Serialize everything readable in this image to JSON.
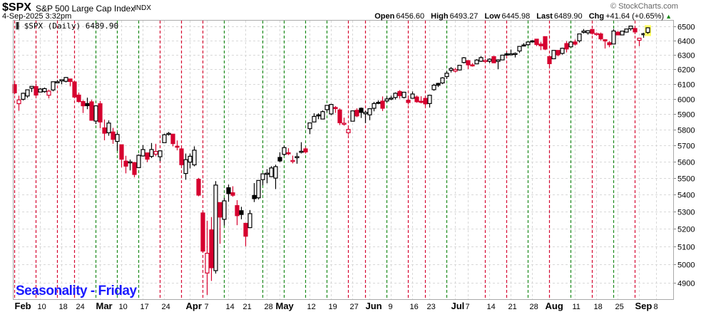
{
  "header": {
    "symbol": "$SPX",
    "name": "S&P 500 Large Cap Index",
    "exchange": "INDX",
    "timestamp": "4-Sep-2025 3:32pm",
    "brand": "© StockCharts.com"
  },
  "quote": {
    "open_label": "Open",
    "open": "6456.60",
    "high_label": "High",
    "high": "6493.27",
    "low_label": "Low",
    "low": "6445.98",
    "last_label": "Last",
    "last": "6489.90",
    "chg_label": "Chg",
    "chg": "+41.64 (+0.65%)"
  },
  "legend": {
    "text": "$SPX (Daily) 6489.90"
  },
  "annotation": "Seasonality - Friday",
  "colors": {
    "up": "#000000",
    "down": "#d6002f",
    "friday_up": "#1a8a1a",
    "friday_down": "#d6002f",
    "highlight": "#ffff66",
    "annotation": "#1a1aff"
  },
  "chart_data": {
    "type": "candlestick",
    "title": "$SPX (Daily)",
    "scale": "log",
    "ylim": [
      4820,
      6530
    ],
    "yticks": [
      4900,
      5000,
      5100,
      5200,
      5300,
      5400,
      5500,
      5600,
      5700,
      5800,
      5900,
      6000,
      6100,
      6200,
      6300,
      6400,
      6500
    ],
    "xticks": [
      {
        "label": "Feb",
        "i": 1,
        "b": true
      },
      {
        "label": "10",
        "i": 6
      },
      {
        "label": "18",
        "i": 11
      },
      {
        "label": "24",
        "i": 15
      },
      {
        "label": "Mar",
        "i": 20,
        "b": true
      },
      {
        "label": "10",
        "i": 25
      },
      {
        "label": "17",
        "i": 30
      },
      {
        "label": "24",
        "i": 35
      },
      {
        "label": "Apr",
        "i": 41,
        "b": true
      },
      {
        "label": "7",
        "i": 45
      },
      {
        "label": "14",
        "i": 50
      },
      {
        "label": "21",
        "i": 54
      },
      {
        "label": "28",
        "i": 59
      },
      {
        "label": "May",
        "i": 62,
        "b": true
      },
      {
        "label": "12",
        "i": 69
      },
      {
        "label": "19",
        "i": 74
      },
      {
        "label": "27",
        "i": 79
      },
      {
        "label": "Jun",
        "i": 83,
        "b": true
      },
      {
        "label": "9",
        "i": 88
      },
      {
        "label": "16",
        "i": 93
      },
      {
        "label": "23",
        "i": 97
      },
      {
        "label": "Jul",
        "i": 103,
        "b": true
      },
      {
        "label": "7",
        "i": 106
      },
      {
        "label": "14",
        "i": 111
      },
      {
        "label": "21",
        "i": 116
      },
      {
        "label": "28",
        "i": 121
      },
      {
        "label": "Aug",
        "i": 125,
        "b": true
      },
      {
        "label": "11",
        "i": 131
      },
      {
        "label": "18",
        "i": 136
      },
      {
        "label": "25",
        "i": 141
      },
      {
        "label": "Sep",
        "i": 146,
        "b": true
      },
      {
        "label": "8",
        "i": 150
      }
    ],
    "fridays": [
      {
        "i": 0,
        "up": false
      },
      {
        "i": 5,
        "up": false
      },
      {
        "i": 10,
        "up": false
      },
      {
        "i": 14,
        "up": false
      },
      {
        "i": 19,
        "up": true
      },
      {
        "i": 24,
        "up": true
      },
      {
        "i": 29,
        "up": true
      },
      {
        "i": 34,
        "up": false
      },
      {
        "i": 39,
        "up": false
      },
      {
        "i": 44,
        "up": false
      },
      {
        "i": 49,
        "up": true
      },
      {
        "i": 58,
        "up": true
      },
      {
        "i": 63,
        "up": true
      },
      {
        "i": 68,
        "up": true
      },
      {
        "i": 73,
        "up": true
      },
      {
        "i": 78,
        "up": false
      },
      {
        "i": 82,
        "up": false
      },
      {
        "i": 87,
        "up": true
      },
      {
        "i": 92,
        "up": false
      },
      {
        "i": 96,
        "up": false
      },
      {
        "i": 101,
        "up": true
      },
      {
        "i": 110,
        "up": false
      },
      {
        "i": 115,
        "up": false
      },
      {
        "i": 120,
        "up": true
      },
      {
        "i": 125,
        "up": false
      },
      {
        "i": 130,
        "up": true
      },
      {
        "i": 135,
        "up": false
      },
      {
        "i": 140,
        "up": true
      },
      {
        "i": 145,
        "up": false
      }
    ],
    "ohlc": [
      [
        6096,
        6120,
        6030,
        6041
      ],
      [
        5969,
        6022,
        5923,
        5994
      ],
      [
        5998,
        6042,
        5990,
        6038
      ],
      [
        6020,
        6062,
        6007,
        6061
      ],
      [
        6072,
        6084,
        6046,
        6084
      ],
      [
        6083,
        6101,
        6020,
        6026
      ],
      [
        6046,
        6073,
        6045,
        6066
      ],
      [
        6049,
        6076,
        6042,
        6069
      ],
      [
        6025,
        6063,
        6004,
        6052
      ],
      [
        6060,
        6116,
        6051,
        6115
      ],
      [
        6115,
        6127,
        6107,
        6115
      ],
      [
        6121,
        6129,
        6099,
        6129
      ],
      [
        6118,
        6147,
        6111,
        6144
      ],
      [
        6134,
        6134,
        6084,
        6117
      ],
      [
        6114,
        6115,
        6008,
        6013
      ],
      [
        6026,
        6043,
        5977,
        5983
      ],
      [
        5983,
        5992,
        5908,
        5955
      ],
      [
        5970,
        6009,
        5933,
        5956
      ],
      [
        5981,
        5994,
        5858,
        5861
      ],
      [
        5856,
        5959,
        5837,
        5955
      ],
      [
        5969,
        5987,
        5810,
        5850
      ],
      [
        5812,
        5866,
        5733,
        5778
      ],
      [
        5781,
        5860,
        5762,
        5843
      ],
      [
        5786,
        5812,
        5711,
        5739
      ],
      [
        5726,
        5783,
        5667,
        5770
      ],
      [
        5705,
        5705,
        5564,
        5615
      ],
      [
        5603,
        5636,
        5528,
        5572
      ],
      [
        5599,
        5613,
        5546,
        5599
      ],
      [
        5594,
        5597,
        5504,
        5521
      ],
      [
        5563,
        5645,
        5563,
        5639
      ],
      [
        5635,
        5703,
        5631,
        5675
      ],
      [
        5654,
        5654,
        5597,
        5615
      ],
      [
        5632,
        5716,
        5622,
        5675
      ],
      [
        5646,
        5711,
        5633,
        5663
      ],
      [
        5630,
        5670,
        5603,
        5667
      ],
      [
        5718,
        5775,
        5718,
        5768
      ],
      [
        5771,
        5786,
        5763,
        5777
      ],
      [
        5772,
        5773,
        5695,
        5712
      ],
      [
        5696,
        5732,
        5670,
        5693
      ],
      [
        5679,
        5685,
        5572,
        5581
      ],
      [
        5527,
        5650,
        5489,
        5612
      ],
      [
        5597,
        5650,
        5558,
        5633
      ],
      [
        5580,
        5695,
        5571,
        5671
      ],
      [
        5492,
        5500,
        5390,
        5397
      ],
      [
        5292,
        5292,
        5069,
        5074
      ],
      [
        4953,
        5247,
        4835,
        5062
      ],
      [
        5194,
        5268,
        4910,
        4982
      ],
      [
        4966,
        5481,
        4950,
        5457
      ],
      [
        5353,
        5353,
        5115,
        5268
      ],
      [
        5255,
        5381,
        5220,
        5363
      ],
      [
        5441,
        5460,
        5358,
        5406
      ],
      [
        5411,
        5450,
        5387,
        5396
      ],
      [
        5335,
        5367,
        5221,
        5276
      ],
      [
        5305,
        5328,
        5255,
        5283
      ],
      [
        5232,
        5232,
        5101,
        5158
      ],
      [
        5207,
        5309,
        5207,
        5288
      ],
      [
        5395,
        5469,
        5356,
        5376
      ],
      [
        5381,
        5485,
        5371,
        5485
      ],
      [
        5490,
        5528,
        5456,
        5525
      ],
      [
        5529,
        5554,
        5468,
        5529
      ],
      [
        5508,
        5572,
        5505,
        5561
      ],
      [
        5499,
        5581,
        5433,
        5569
      ],
      [
        5626,
        5658,
        5597,
        5604
      ],
      [
        5645,
        5700,
        5635,
        5687
      ],
      [
        5655,
        5683,
        5640,
        5650
      ],
      [
        5607,
        5637,
        5589,
        5607
      ],
      [
        5624,
        5655,
        5587,
        5631
      ],
      [
        5663,
        5721,
        5651,
        5664
      ],
      [
        5679,
        5691,
        5650,
        5660
      ],
      [
        5807,
        5845,
        5772,
        5844
      ],
      [
        5850,
        5906,
        5850,
        5886
      ],
      [
        5896,
        5906,
        5868,
        5893
      ],
      [
        5869,
        5925,
        5867,
        5917
      ],
      [
        5930,
        5958,
        5914,
        5958
      ],
      [
        5902,
        5968,
        5895,
        5964
      ],
      [
        5944,
        5953,
        5909,
        5940
      ],
      [
        5928,
        5938,
        5830,
        5845
      ],
      [
        5841,
        5878,
        5826,
        5842
      ],
      [
        5781,
        5829,
        5767,
        5802
      ],
      [
        5855,
        5924,
        5854,
        5922
      ],
      [
        5926,
        5939,
        5881,
        5889
      ],
      [
        5939,
        5944,
        5876,
        5912
      ],
      [
        5903,
        5922,
        5843,
        5912
      ],
      [
        5896,
        5937,
        5862,
        5936
      ],
      [
        5939,
        5981,
        5919,
        5970
      ],
      [
        5978,
        5991,
        5966,
        5971
      ],
      [
        5986,
        6017,
        5921,
        5939
      ],
      [
        5987,
        6016,
        5979,
        6000
      ],
      [
        6005,
        6022,
        5992,
        6006
      ],
      [
        6010,
        6044,
        5997,
        6038
      ],
      [
        6050,
        6059,
        6003,
        6022
      ],
      [
        6010,
        6045,
        6004,
        6045
      ],
      [
        5992,
        6022,
        5963,
        5977
      ],
      [
        6005,
        6050,
        6005,
        6033
      ],
      [
        6013,
        6023,
        5975,
        5982
      ],
      [
        5985,
        6018,
        5971,
        5981
      ],
      [
        6004,
        6018,
        5952,
        5968
      ],
      [
        5970,
        6028,
        5944,
        6025
      ],
      [
        6062,
        6101,
        6055,
        6092
      ],
      [
        6104,
        6108,
        6080,
        6092
      ],
      [
        6107,
        6146,
        6100,
        6141
      ],
      [
        6150,
        6187,
        6133,
        6173
      ],
      [
        6193,
        6215,
        6178,
        6205
      ],
      [
        6187,
        6210,
        6178,
        6198
      ],
      [
        6195,
        6228,
        6191,
        6227
      ],
      [
        6246,
        6284,
        6240,
        6279
      ],
      [
        6259,
        6263,
        6201,
        6230
      ],
      [
        6230,
        6242,
        6218,
        6226
      ],
      [
        6237,
        6269,
        6237,
        6263
      ],
      [
        6255,
        6290,
        6250,
        6280
      ],
      [
        6256,
        6270,
        6250,
        6260
      ],
      [
        6255,
        6275,
        6242,
        6269
      ],
      [
        6287,
        6292,
        6243,
        6244
      ],
      [
        6254,
        6268,
        6201,
        6264
      ],
      [
        6264,
        6299,
        6262,
        6297
      ],
      [
        6306,
        6316,
        6294,
        6297
      ],
      [
        6304,
        6336,
        6303,
        6306
      ],
      [
        6307,
        6316,
        6281,
        6309
      ],
      [
        6326,
        6358,
        6312,
        6358
      ],
      [
        6368,
        6381,
        6360,
        6363
      ],
      [
        6370,
        6390,
        6363,
        6389
      ],
      [
        6397,
        6402,
        6385,
        6390
      ],
      [
        6409,
        6409,
        6360,
        6371
      ],
      [
        6374,
        6390,
        6332,
        6362
      ],
      [
        6427,
        6428,
        6332,
        6339
      ],
      [
        6287,
        6288,
        6212,
        6238
      ],
      [
        6272,
        6330,
        6271,
        6330
      ],
      [
        6330,
        6331,
        6289,
        6299
      ],
      [
        6309,
        6349,
        6301,
        6345
      ],
      [
        6378,
        6395,
        6316,
        6340
      ],
      [
        6355,
        6390,
        6355,
        6389
      ],
      [
        6389,
        6406,
        6364,
        6374
      ],
      [
        6397,
        6446,
        6385,
        6446
      ],
      [
        6457,
        6481,
        6449,
        6466
      ],
      [
        6454,
        6473,
        6441,
        6469
      ],
      [
        6478,
        6482,
        6441,
        6450
      ],
      [
        6445,
        6456,
        6433,
        6449
      ],
      [
        6446,
        6456,
        6400,
        6411
      ],
      [
        6405,
        6407,
        6343,
        6396
      ],
      [
        6384,
        6394,
        6352,
        6370
      ],
      [
        6375,
        6481,
        6374,
        6467
      ],
      [
        6458,
        6466,
        6438,
        6439
      ],
      [
        6439,
        6466,
        6438,
        6466
      ],
      [
        6459,
        6483,
        6456,
        6481
      ],
      [
        6483,
        6502,
        6469,
        6502
      ],
      [
        6485,
        6490,
        6444,
        6460
      ],
      [
        6401,
        6416,
        6360,
        6416
      ],
      [
        6448,
        6454,
        6419,
        6448
      ],
      [
        6456.6,
        6493.27,
        6445.98,
        6489.9
      ]
    ]
  }
}
